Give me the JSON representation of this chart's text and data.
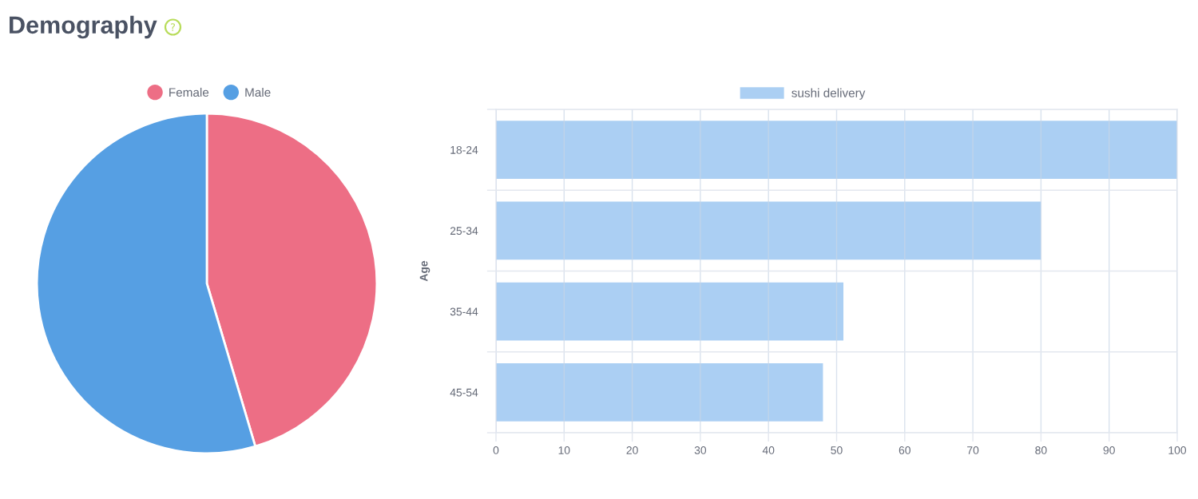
{
  "chart_data": [
    {
      "type": "pie",
      "title": "Demography",
      "categories": [
        "Female",
        "Male"
      ],
      "values": [
        45.4,
        54.6
      ],
      "colors": [
        "#ed6e85",
        "#569fe3"
      ],
      "legend": "top"
    },
    {
      "type": "bar",
      "orientation": "horizontal",
      "ylabel": "Age",
      "categories": [
        "18-24",
        "25-34",
        "35-44",
        "45-54"
      ],
      "series": [
        {
          "name": "sushi delivery",
          "color": "#abcff3",
          "values": [
            100,
            80,
            51,
            48
          ]
        }
      ],
      "xlim": [
        0,
        100
      ],
      "xticks": [
        0,
        10,
        20,
        30,
        40,
        50,
        60,
        70,
        80,
        90,
        100
      ],
      "grid": true,
      "legend": "top"
    }
  ]
}
